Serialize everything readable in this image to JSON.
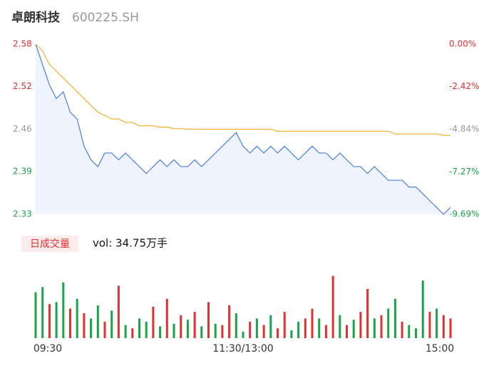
{
  "header": {
    "name": "卓朗科技",
    "code": "600225.SH"
  },
  "volume_label": "日成交量",
  "volume_text": "vol: 34.75万手",
  "chart_data": [
    {
      "type": "line",
      "x": [
        0,
        4,
        8,
        12,
        16,
        20,
        24,
        28,
        32,
        36,
        40,
        44,
        48,
        52,
        56,
        60,
        64,
        68,
        72,
        76,
        80,
        84,
        88,
        92,
        96,
        100,
        104,
        108,
        112,
        116,
        120,
        124,
        128,
        132,
        136,
        140,
        144,
        148,
        152,
        156,
        160,
        164,
        168,
        172,
        176,
        180,
        184,
        188,
        192,
        196,
        200,
        204,
        208,
        212,
        216,
        220,
        224,
        228,
        232,
        236,
        240
      ],
      "series": [
        {
          "name": "price",
          "color": "#4a7fe0",
          "values": [
            2.58,
            2.55,
            2.52,
            2.5,
            2.51,
            2.48,
            2.47,
            2.43,
            2.41,
            2.4,
            2.42,
            2.42,
            2.41,
            2.42,
            2.41,
            2.4,
            2.39,
            2.4,
            2.41,
            2.4,
            2.41,
            2.4,
            2.4,
            2.41,
            2.4,
            2.41,
            2.42,
            2.43,
            2.44,
            2.45,
            2.43,
            2.42,
            2.43,
            2.42,
            2.43,
            2.42,
            2.43,
            2.42,
            2.41,
            2.42,
            2.43,
            2.42,
            2.42,
            2.41,
            2.42,
            2.41,
            2.4,
            2.4,
            2.39,
            2.4,
            2.39,
            2.38,
            2.38,
            2.38,
            2.37,
            2.37,
            2.36,
            2.35,
            2.34,
            2.33,
            2.34
          ]
        },
        {
          "name": "average",
          "color": "#f0b030",
          "values": [
            2.58,
            2.57,
            2.55,
            2.54,
            2.53,
            2.52,
            2.51,
            2.5,
            2.49,
            2.48,
            2.475,
            2.47,
            2.47,
            2.465,
            2.465,
            2.46,
            2.46,
            2.46,
            2.458,
            2.458,
            2.456,
            2.456,
            2.455,
            2.455,
            2.455,
            2.455,
            2.455,
            2.455,
            2.455,
            2.455,
            2.455,
            2.455,
            2.455,
            2.455,
            2.455,
            2.452,
            2.452,
            2.452,
            2.452,
            2.452,
            2.452,
            2.452,
            2.452,
            2.452,
            2.452,
            2.452,
            2.452,
            2.452,
            2.452,
            2.452,
            2.452,
            2.452,
            2.448,
            2.448,
            2.448,
            2.448,
            2.448,
            2.448,
            2.448,
            2.446,
            2.446
          ]
        }
      ],
      "xlim": [
        0,
        240
      ],
      "xticks": [
        {
          "value": 0,
          "label": "09:30"
        },
        {
          "value": 120,
          "label": "11:30/13:00"
        },
        {
          "value": 240,
          "label": "15:00"
        }
      ],
      "ylim": [
        2.33,
        2.58
      ],
      "yticks": [
        {
          "value": 2.33,
          "label": "2.33"
        },
        {
          "value": 2.3927,
          "label": "2.39"
        },
        {
          "value": 2.4551,
          "label": "2.46"
        },
        {
          "value": 2.5176,
          "label": "2.52"
        },
        {
          "value": 2.58,
          "label": "2.58"
        }
      ],
      "ytick_colors": [
        "#1aa34a",
        "#1aa34a",
        "#999999",
        "#e03030",
        "#e03030"
      ],
      "y2lim": [
        -9.69,
        0
      ],
      "y2ticks": [
        {
          "value": -9.69,
          "label": "-9.69%"
        },
        {
          "value": -7.27,
          "label": "-7.27%"
        },
        {
          "value": -4.84,
          "label": "-4.84%"
        },
        {
          "value": -2.42,
          "label": "-2.42%"
        },
        {
          "value": 0,
          "label": "0.00%"
        }
      ],
      "area_color": "#eef3fd"
    },
    {
      "type": "bar",
      "x": [
        0,
        4,
        8,
        12,
        16,
        20,
        24,
        28,
        32,
        36,
        40,
        44,
        48,
        52,
        56,
        60,
        64,
        68,
        72,
        76,
        80,
        84,
        88,
        92,
        96,
        100,
        104,
        108,
        112,
        116,
        120,
        124,
        128,
        132,
        136,
        140,
        144,
        148,
        152,
        156,
        160,
        164,
        168,
        172,
        176,
        180,
        184,
        188,
        192,
        196,
        200,
        204,
        208,
        212,
        216,
        220,
        224,
        228,
        232,
        236,
        240
      ],
      "values": [
        70,
        78,
        52,
        55,
        85,
        45,
        60,
        38,
        30,
        50,
        25,
        42,
        80,
        20,
        15,
        30,
        25,
        48,
        18,
        60,
        22,
        35,
        28,
        40,
        18,
        55,
        22,
        20,
        50,
        38,
        10,
        25,
        30,
        20,
        35,
        15,
        40,
        12,
        25,
        30,
        45,
        30,
        20,
        95,
        35,
        20,
        28,
        40,
        75,
        30,
        35,
        45,
        60,
        25,
        20,
        15,
        88,
        40,
        45,
        35,
        30
      ],
      "colors": [
        "#1aa34a",
        "#1aa34a",
        "#e03030",
        "#1aa34a",
        "#1aa34a",
        "#e03030",
        "#1aa34a",
        "#e03030",
        "#1aa34a",
        "#1aa34a",
        "#e03030",
        "#1aa34a",
        "#e03030",
        "#1aa34a",
        "#e03030",
        "#1aa34a",
        "#1aa34a",
        "#e03030",
        "#1aa34a",
        "#e03030",
        "#1aa34a",
        "#e03030",
        "#1aa34a",
        "#e03030",
        "#1aa34a",
        "#e03030",
        "#1aa34a",
        "#e03030",
        "#e03030",
        "#1aa34a",
        "#1aa34a",
        "#e03030",
        "#1aa34a",
        "#e03030",
        "#1aa34a",
        "#e03030",
        "#e03030",
        "#1aa34a",
        "#1aa34a",
        "#e03030",
        "#e03030",
        "#1aa34a",
        "#e03030",
        "#e03030",
        "#1aa34a",
        "#e03030",
        "#1aa34a",
        "#e03030",
        "#e03030",
        "#1aa34a",
        "#e03030",
        "#1aa34a",
        "#1aa34a",
        "#e03030",
        "#1aa34a",
        "#1aa34a",
        "#1aa34a",
        "#e03030",
        "#1aa34a",
        "#e03030",
        "#e03030"
      ],
      "xlim": [
        0,
        240
      ],
      "ylim": [
        0,
        100
      ]
    }
  ]
}
